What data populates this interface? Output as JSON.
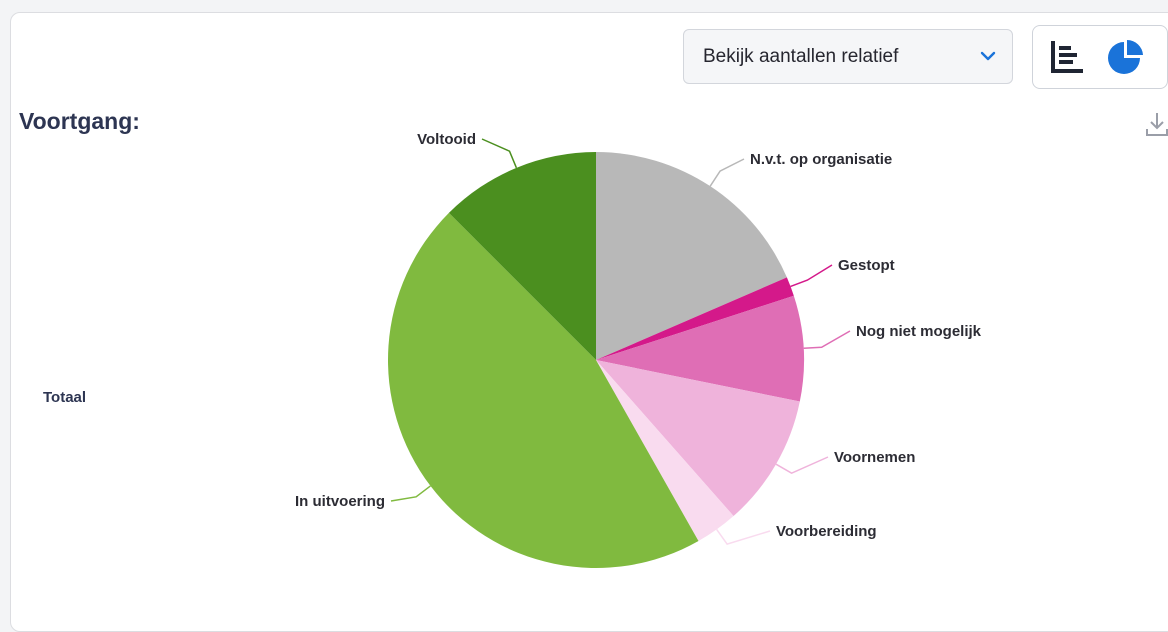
{
  "view_select": {
    "value": "Bekijk aantallen relatief"
  },
  "toggle": {
    "left_icon": "bar-chart-icon",
    "right_icon": "pie-chart-icon",
    "active": "pie",
    "active_color": "#1a73d9"
  },
  "section": {
    "title": "Voortgang:",
    "row_label": "Totaal"
  },
  "download_icon": "download-icon",
  "chart_data": {
    "type": "pie",
    "title": "",
    "start_angle_deg": 0,
    "direction": "clockwise",
    "slices": [
      {
        "label": "N.v.t. op organisatie",
        "value": 18.5,
        "color": "#b8b8b8"
      },
      {
        "label": "Gestopt",
        "value": 1.5,
        "color": "#d4198a"
      },
      {
        "label": "Nog niet mogelijk",
        "value": 8.2,
        "color": "#df6eb5"
      },
      {
        "label": "Voornemen",
        "value": 10.3,
        "color": "#efb3db"
      },
      {
        "label": "Voorbereiding",
        "value": 3.3,
        "color": "#f9dbef"
      },
      {
        "label": "In uitvoering",
        "value": 45.7,
        "color": "#80ba3f"
      },
      {
        "label": "Voltooid",
        "value": 12.5,
        "color": "#4b8f1f"
      }
    ]
  }
}
